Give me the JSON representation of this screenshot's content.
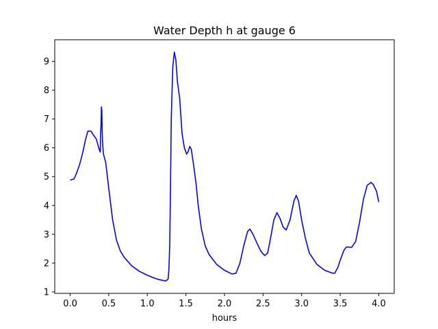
{
  "chart_data": {
    "type": "line",
    "title": "Water Depth h at gauge 6",
    "xlabel": "hours",
    "ylabel": "",
    "xlim": [
      -0.2,
      4.2
    ],
    "ylim": [
      0.95,
      9.75
    ],
    "xticks": [
      "0.0",
      "0.5",
      "1.0",
      "1.5",
      "2.0",
      "2.5",
      "3.0",
      "3.5",
      "4.0"
    ],
    "yticks": [
      "1",
      "2",
      "3",
      "4",
      "5",
      "6",
      "7",
      "8",
      "9"
    ],
    "grid": false,
    "legend": "none",
    "series": [
      {
        "color": "#0000ff",
        "x": [
          0.0,
          0.05,
          0.08,
          0.12,
          0.16,
          0.2,
          0.23,
          0.27,
          0.3,
          0.34,
          0.37,
          0.39,
          0.395,
          0.4,
          0.405,
          0.41,
          0.415,
          0.42,
          0.43,
          0.46,
          0.5,
          0.55,
          0.6,
          0.65,
          0.7,
          0.8,
          0.9,
          1.0,
          1.1,
          1.15,
          1.2,
          1.24,
          1.27,
          1.28,
          1.29,
          1.3,
          1.31,
          1.33,
          1.35,
          1.37,
          1.39,
          1.42,
          1.45,
          1.48,
          1.51,
          1.53,
          1.55,
          1.57,
          1.6,
          1.63,
          1.66,
          1.7,
          1.75,
          1.8,
          1.9,
          2.0,
          2.1,
          2.15,
          2.2,
          2.25,
          2.3,
          2.33,
          2.37,
          2.42,
          2.47,
          2.52,
          2.56,
          2.6,
          2.64,
          2.68,
          2.72,
          2.76,
          2.8,
          2.85,
          2.9,
          2.93,
          2.96,
          3.0,
          3.05,
          3.1,
          3.2,
          3.3,
          3.4,
          3.43,
          3.47,
          3.5,
          3.55,
          3.58,
          3.62,
          3.65,
          3.7,
          3.75,
          3.8,
          3.85,
          3.9,
          3.93,
          3.97,
          4.0
        ],
        "y": [
          4.88,
          4.92,
          5.1,
          5.4,
          5.8,
          6.3,
          6.58,
          6.58,
          6.45,
          6.3,
          6.0,
          5.85,
          6.5,
          6.8,
          7.42,
          7.3,
          6.6,
          6.2,
          5.8,
          5.5,
          4.6,
          3.5,
          2.8,
          2.42,
          2.2,
          1.9,
          1.71,
          1.58,
          1.47,
          1.43,
          1.4,
          1.38,
          1.45,
          1.8,
          2.6,
          4.5,
          7.0,
          8.8,
          9.32,
          9.05,
          8.3,
          7.7,
          6.5,
          6.0,
          5.78,
          5.88,
          6.05,
          5.95,
          5.4,
          4.8,
          4.0,
          3.2,
          2.6,
          2.3,
          1.95,
          1.75,
          1.62,
          1.65,
          2.0,
          2.6,
          3.1,
          3.18,
          3.0,
          2.7,
          2.42,
          2.26,
          2.35,
          2.9,
          3.5,
          3.75,
          3.55,
          3.25,
          3.15,
          3.5,
          4.15,
          4.35,
          4.15,
          3.5,
          2.85,
          2.35,
          1.95,
          1.75,
          1.65,
          1.65,
          1.85,
          2.1,
          2.45,
          2.56,
          2.55,
          2.55,
          2.75,
          3.4,
          4.2,
          4.7,
          4.8,
          4.72,
          4.5,
          4.12
        ]
      }
    ]
  }
}
